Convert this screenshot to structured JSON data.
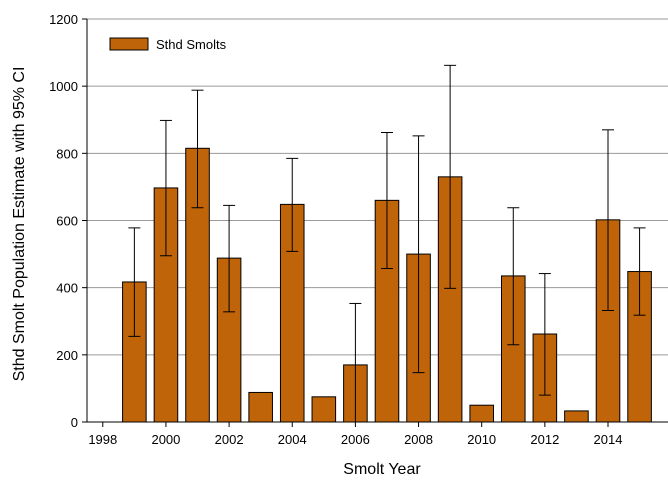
{
  "chart_data": {
    "type": "bar",
    "title": "",
    "xlabel": "Smolt Year",
    "ylabel": "Sthd Smolt Population Estimate with 95% CI",
    "xlim": [
      1997.5,
      2015.9
    ],
    "ylim": [
      0,
      1200
    ],
    "x_ticks": [
      1998,
      2000,
      2002,
      2004,
      2006,
      2008,
      2010,
      2012,
      2014
    ],
    "y_ticks": [
      0,
      200,
      400,
      600,
      800,
      1000,
      1200
    ],
    "grid": "horizontal",
    "legend_position": "top-left",
    "colors": {
      "bar": "#c0640a",
      "bar_edge": "#000000",
      "grid": "#9a9a9a"
    },
    "series": [
      {
        "name": "Sthd Smolts",
        "x": [
          1999,
          2000,
          2001,
          2002,
          2003,
          2004,
          2005,
          2006,
          2007,
          2008,
          2009,
          2010,
          2011,
          2012,
          2013,
          2014,
          2015
        ],
        "values": [
          417,
          697,
          815,
          488,
          88,
          648,
          75,
          170,
          660,
          500,
          730,
          50,
          435,
          262,
          33,
          602,
          448
        ],
        "ci_low": [
          255,
          495,
          638,
          328,
          null,
          508,
          null,
          0,
          457,
          147,
          398,
          null,
          230,
          80,
          null,
          332,
          318
        ],
        "ci_high": [
          578,
          898,
          988,
          645,
          null,
          785,
          null,
          353,
          862,
          852,
          1062,
          null,
          638,
          442,
          null,
          870,
          578
        ]
      }
    ]
  }
}
